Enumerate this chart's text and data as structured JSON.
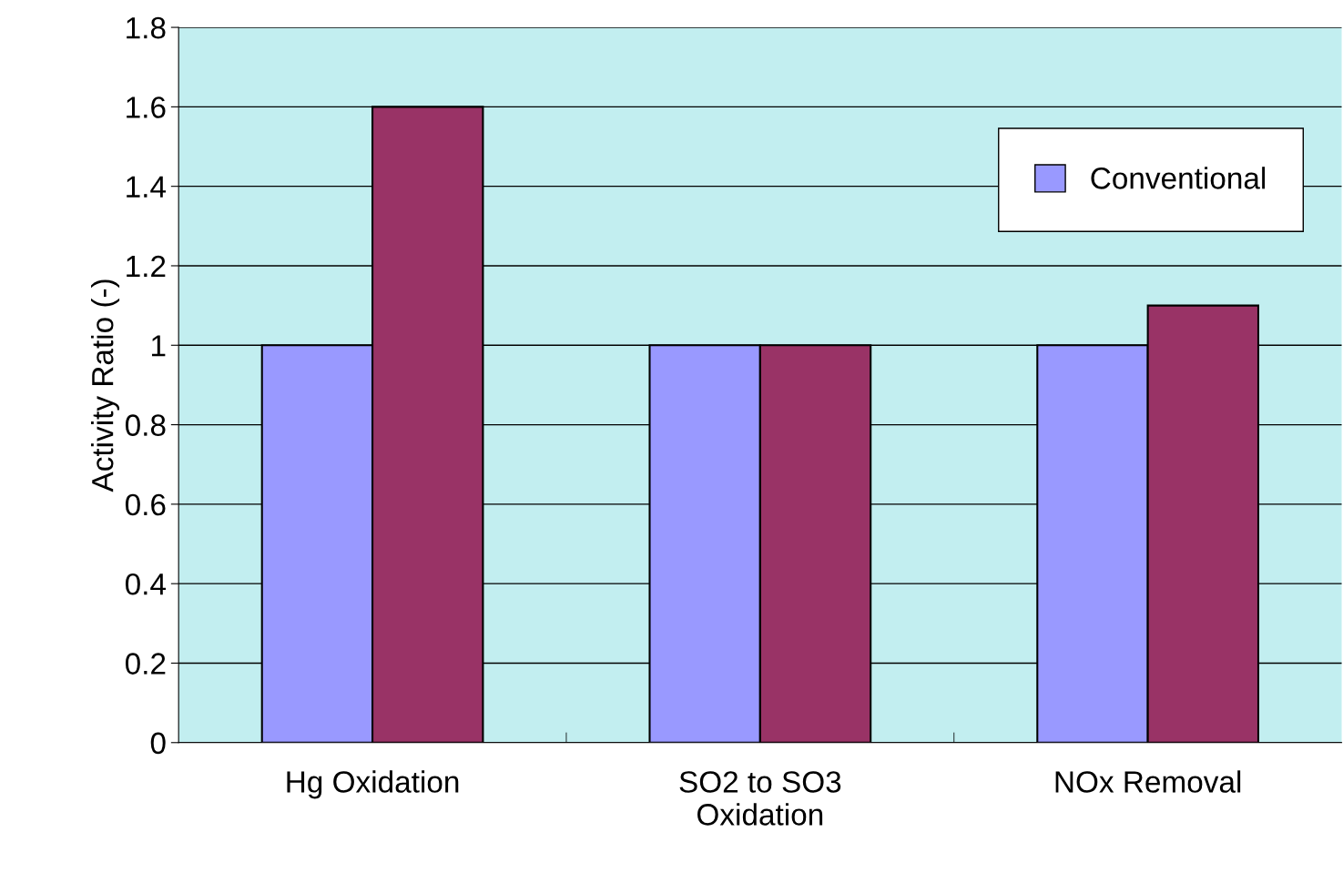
{
  "chart_data": {
    "type": "bar",
    "ylabel": "Activity Ratio (-)",
    "categories": [
      "Hg Oxidation",
      "SO2 to SO3\nOxidation",
      "NOx Removal"
    ],
    "series": [
      {
        "name": "Conventional",
        "color": "#9999ff",
        "values": [
          1,
          1,
          1
        ]
      },
      {
        "color": "#993366",
        "values": [
          1.6,
          1,
          1.1
        ]
      }
    ],
    "ylim": [
      0,
      1.8
    ],
    "yticks": [
      0,
      0.2,
      0.4,
      0.6,
      0.8,
      1,
      1.2,
      1.4,
      1.6,
      1.8
    ],
    "grid": "y",
    "legend": "top right"
  }
}
